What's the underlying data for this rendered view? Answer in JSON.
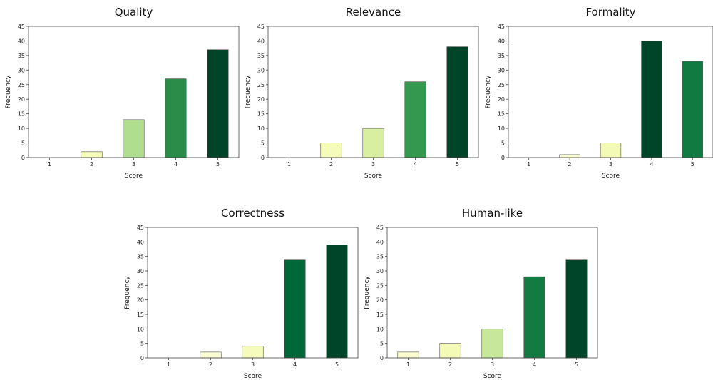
{
  "chart_data": [
    {
      "type": "bar",
      "title": "Quality",
      "xlabel": "Score",
      "ylabel": "Frequency",
      "categories": [
        "1",
        "2",
        "3",
        "4",
        "5"
      ],
      "values": [
        0,
        2,
        13,
        27,
        37
      ],
      "colors": [
        "#ffffe5",
        "#f7fcb9",
        "#b0de8f",
        "#2b8b48",
        "#004529"
      ],
      "ylim": [
        0,
        45
      ],
      "yticks": [
        0,
        5,
        10,
        15,
        20,
        25,
        30,
        35,
        40,
        45
      ],
      "grid": false
    },
    {
      "type": "bar",
      "title": "Relevance",
      "xlabel": "Score",
      "ylabel": "Frequency",
      "categories": [
        "1",
        "2",
        "3",
        "4",
        "5"
      ],
      "values": [
        0,
        5,
        10,
        26,
        38
      ],
      "colors": [
        "#ffffe5",
        "#f5fbb8",
        "#d8efa1",
        "#34984f",
        "#004529"
      ],
      "ylim": [
        0,
        45
      ],
      "yticks": [
        0,
        5,
        10,
        15,
        20,
        25,
        30,
        35,
        40,
        45
      ],
      "grid": false
    },
    {
      "type": "bar",
      "title": "Formality",
      "xlabel": "Score",
      "ylabel": "Frequency",
      "categories": [
        "1",
        "2",
        "3",
        "4",
        "5"
      ],
      "values": [
        0,
        1,
        5,
        40,
        33
      ],
      "colors": [
        "#ffffe5",
        "#fbfdd2",
        "#f3fab5",
        "#004529",
        "#117a41"
      ],
      "ylim": [
        0,
        45
      ],
      "yticks": [
        0,
        5,
        10,
        15,
        20,
        25,
        30,
        35,
        40,
        45
      ],
      "grid": false
    },
    {
      "type": "bar",
      "title": "Correctness",
      "xlabel": "Score",
      "ylabel": "Frequency",
      "categories": [
        "1",
        "2",
        "3",
        "4",
        "5"
      ],
      "values": [
        0,
        2,
        4,
        34,
        39
      ],
      "colors": [
        "#ffffe5",
        "#fbfdd2",
        "#f5fbbd",
        "#006838",
        "#004529"
      ],
      "ylim": [
        0,
        45
      ],
      "yticks": [
        0,
        5,
        10,
        15,
        20,
        25,
        30,
        35,
        40,
        45
      ],
      "grid": false
    },
    {
      "type": "bar",
      "title": "Human-like",
      "xlabel": "Score",
      "ylabel": "Frequency",
      "categories": [
        "1",
        "2",
        "3",
        "4",
        "5"
      ],
      "values": [
        2,
        5,
        10,
        28,
        34
      ],
      "colors": [
        "#fbfdd0",
        "#f3fab6",
        "#c7e89b",
        "#137a41",
        "#004529"
      ],
      "ylim": [
        0,
        45
      ],
      "yticks": [
        0,
        5,
        10,
        15,
        20,
        25,
        30,
        35,
        40,
        45
      ],
      "grid": false
    }
  ]
}
